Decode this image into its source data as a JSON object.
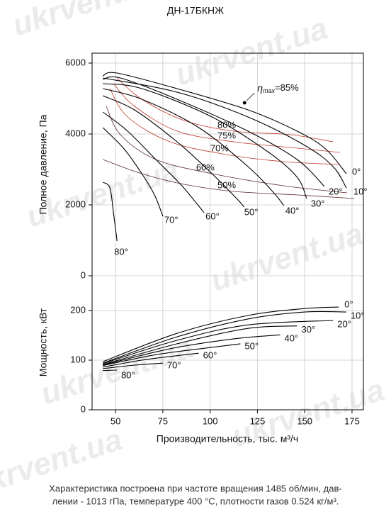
{
  "title": "ДН-17БКНЖ",
  "watermark": "ukrvent.ua",
  "footnote": [
    "Характеристика построена при частоте вращения 1485 об/мин, дав-",
    "лении - 1013 гПа, температуре 400 °С, плотности газов 0.524 кг/м³."
  ],
  "chart_data": [
    {
      "type": "line",
      "y_label": "Полное давление, Па",
      "xlim": [
        37.6,
        181
      ],
      "ylim": [
        0,
        6280
      ],
      "yticks": [
        0,
        2000,
        4000,
        6000
      ],
      "grid": true,
      "series": [
        {
          "name": "0°",
          "color": "#000000",
          "x": [
            43.3,
            50.7,
            82.5,
            120,
            146,
            161,
            172
          ],
          "values": [
            5640,
            5720,
            5280,
            4680,
            4080,
            3580,
            2880
          ]
        },
        {
          "name": "10°",
          "color": "#000000",
          "x": [
            43.3,
            82.5,
            120,
            150,
            165,
            172
          ],
          "values": [
            5580,
            5180,
            4480,
            3680,
            3080,
            2480
          ]
        },
        {
          "name": "20°",
          "color": "#000000",
          "x": [
            43.3,
            52.6,
            82.5,
            120,
            146,
            160.4
          ],
          "values": [
            5540,
            5580,
            4980,
            4080,
            3280,
            2520
          ]
        },
        {
          "name": "30°",
          "color": "#000000",
          "x": [
            43.3,
            63.9,
            101,
            131,
            146,
            151
          ],
          "values": [
            5420,
            5280,
            4480,
            3480,
            2780,
            2180
          ]
        },
        {
          "name": "40°",
          "color": "#000000",
          "x": [
            43.3,
            63.9,
            94,
            120,
            133,
            139
          ],
          "values": [
            5280,
            4980,
            4180,
            3080,
            2380,
            1980
          ]
        },
        {
          "name": "50°",
          "color": "#000000",
          "x": [
            43.3,
            60,
            82.5,
            101,
            114,
            118
          ],
          "values": [
            5080,
            4680,
            3780,
            2880,
            2180,
            1940
          ]
        },
        {
          "name": "60°",
          "color": "#000000",
          "x": [
            43.3,
            56.4,
            71.3,
            84.4,
            93.8,
            96.8
          ],
          "values": [
            4620,
            4080,
            3280,
            2580,
            1980,
            1780
          ]
        },
        {
          "name": "70°",
          "color": "#000000",
          "x": [
            43.3,
            54.5,
            63.9,
            70.6,
            75
          ],
          "values": [
            4180,
            3580,
            2880,
            2280,
            1680
          ]
        },
        {
          "name": "80°",
          "color": "#000000",
          "x": [
            43.3,
            47,
            48.9,
            50.8
          ],
          "values": [
            2640,
            2480,
            1780,
            980
          ]
        }
      ],
      "efficiency": [
        {
          "name": "80%",
          "color": "#c0392b",
          "x": [
            50.7,
            63.9,
            86.3,
            112.5,
            142.4,
            164.9
          ],
          "values": [
            5580,
            4980,
            4380,
            4080,
            3980,
            3780
          ]
        },
        {
          "name": "75%",
          "color": "#c0392b",
          "x": [
            48.9,
            60.1,
            82.6,
            112.5,
            142.4,
            168.6
          ],
          "values": [
            5420,
            4780,
            4080,
            3780,
            3620,
            3480
          ]
        },
        {
          "name": "70%",
          "color": "#c0392b",
          "x": [
            47,
            56.4,
            78.8,
            108.7,
            138.7,
            168.6
          ],
          "values": [
            5280,
            4480,
            3780,
            3420,
            3220,
            3140
          ]
        },
        {
          "name": "60%",
          "color": "#5a2a2a",
          "x": [
            45.1,
            52.6,
            71.3,
            101.2,
            138.7,
            172.4
          ],
          "values": [
            4780,
            3980,
            3280,
            2880,
            2540,
            2340
          ]
        },
        {
          "name": "50%",
          "color": "#5a2a2a",
          "x": [
            43.3,
            63.9,
            86.3,
            112.5,
            146.2,
            176.2
          ],
          "values": [
            3280,
            2880,
            2580,
            2380,
            2280,
            2180
          ]
        }
      ],
      "annotations": [
        {
          "x": 118.2,
          "y": 4880,
          "text": [
            "η",
            "max",
            "=85%"
          ]
        }
      ]
    },
    {
      "type": "line",
      "y_label": "Мощность, кВт",
      "x_label": "Производительность, тыс. м³/ч",
      "xlim": [
        37.6,
        181
      ],
      "ylim": [
        0,
        270
      ],
      "xticks": [
        50,
        75,
        100,
        125,
        150,
        175
      ],
      "yticks": [
        0,
        100,
        200
      ],
      "grid": true,
      "series": [
        {
          "name": "0°",
          "color": "#000000",
          "x": [
            43.3,
            82.5,
            120,
            150,
            168
          ],
          "values": [
            97,
            154,
            190,
            204,
            207
          ]
        },
        {
          "name": "10°",
          "color": "#000000",
          "x": [
            43.3,
            82.5,
            120,
            150,
            172
          ],
          "values": [
            94,
            147,
            183,
            197,
            197
          ]
        },
        {
          "name": "20°",
          "color": "#000000",
          "x": [
            43.3,
            82.5,
            120,
            165
          ],
          "values": [
            93,
            140,
            171,
            180
          ]
        },
        {
          "name": "30°",
          "color": "#000000",
          "x": [
            43.3,
            82.5,
            120,
            146
          ],
          "values": [
            91,
            133,
            164,
            169
          ]
        },
        {
          "name": "40°",
          "color": "#000000",
          "x": [
            43.3,
            78.8,
            112.5,
            137
          ],
          "values": [
            90,
            123,
            143,
            151
          ]
        },
        {
          "name": "50°",
          "color": "#000000",
          "x": [
            43.3,
            71.3,
            101.2,
            116
          ],
          "values": [
            89,
            111,
            126,
            133
          ]
        },
        {
          "name": "60°",
          "color": "#000000",
          "x": [
            43.3,
            63.9,
            82.5,
            94
          ],
          "values": [
            86,
            100,
            109,
            114
          ]
        },
        {
          "name": "70°",
          "color": "#000000",
          "x": [
            43.3,
            60.1,
            75
          ],
          "values": [
            83,
            90,
            94
          ]
        },
        {
          "name": "80°",
          "color": "#000000",
          "x": [
            43.3,
            50.7
          ],
          "values": [
            79,
            80
          ]
        }
      ]
    }
  ]
}
